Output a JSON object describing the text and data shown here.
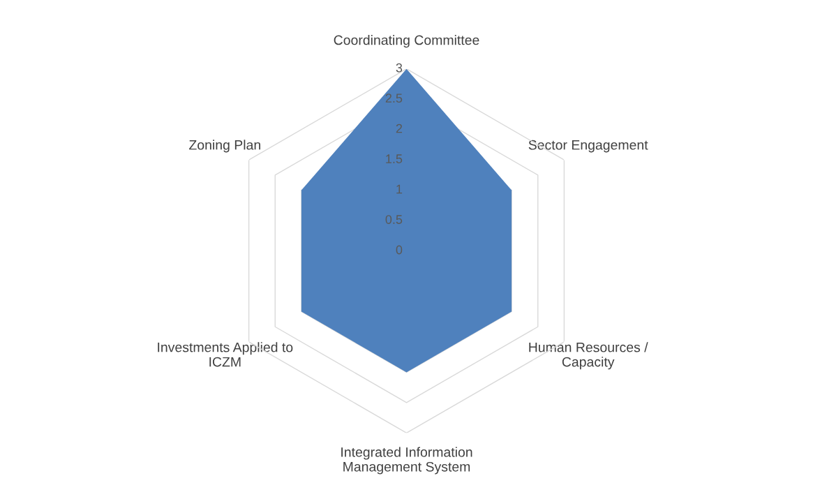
{
  "chart_data": {
    "type": "radar",
    "categories": [
      "Coordinating Committee",
      "Sector Engagement",
      "Human Resources /\nCapacity",
      "Integrated Information\nManagement System",
      "Investments Applied to\nICZM",
      "Zoning Plan"
    ],
    "series": [
      {
        "color": "#4f81bd",
        "values": [
          3,
          2,
          2,
          2,
          2,
          2
        ]
      }
    ],
    "ylim": [
      0,
      3
    ],
    "yticks": [
      0,
      0.5,
      1,
      1.5,
      2,
      2.5,
      3
    ],
    "grid": true
  }
}
